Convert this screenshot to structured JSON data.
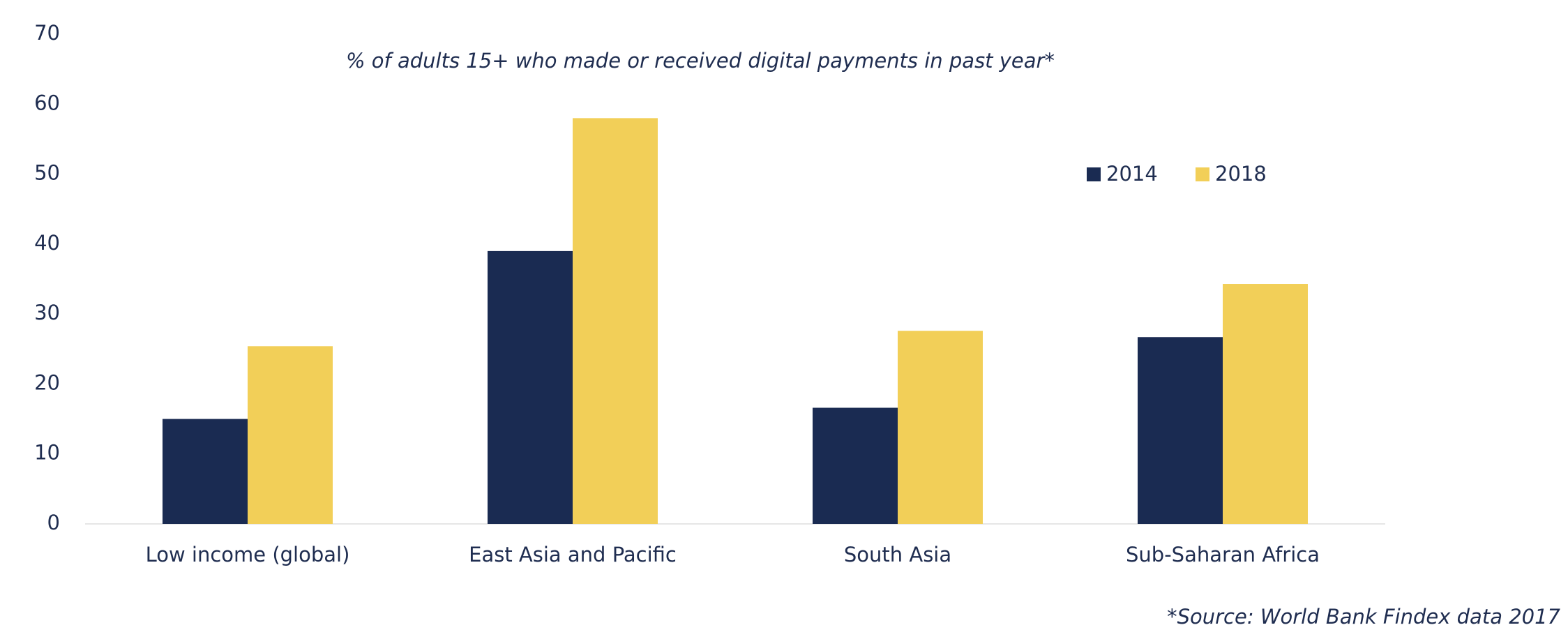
{
  "chart_data": {
    "type": "bar",
    "title": "% of adults 15+ who made or received digital payments in past year*",
    "source": "*Source: World Bank Findex data 2017",
    "categories": [
      "Low income (global)",
      "East Asia and Pacific",
      "South Asia",
      "Sub-Saharan Africa"
    ],
    "series": [
      {
        "name": "2014",
        "color": "#1a2b52",
        "values": [
          15,
          39,
          16.6,
          26.7
        ]
      },
      {
        "name": "2018",
        "color": "#f2cf58",
        "values": [
          25.4,
          58,
          27.6,
          34.3
        ]
      }
    ],
    "ylim": [
      0,
      70
    ],
    "yticks": [
      0,
      10,
      20,
      30,
      40,
      50,
      60,
      70
    ],
    "grid": false
  }
}
